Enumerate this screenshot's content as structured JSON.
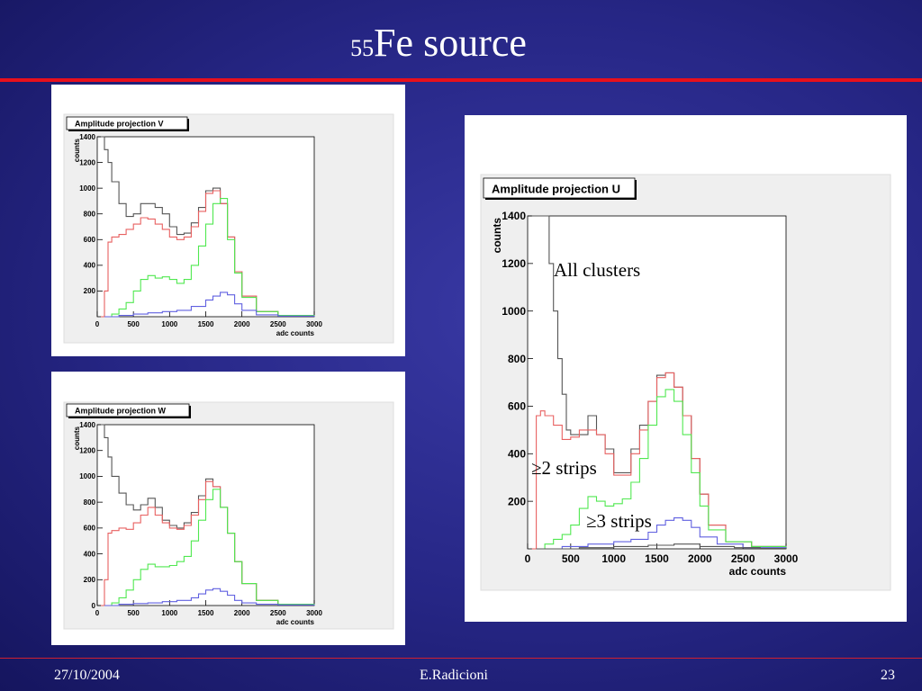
{
  "slide": {
    "title_sup": "55",
    "title_text": "Fe source",
    "date": "27/10/2004",
    "author": "E.Radicioni",
    "page": "23"
  },
  "colors": {
    "accent_rule": "#e8101c",
    "all_clusters": "#555555",
    "two_strips": "#e86060",
    "three_strips": "#50e850",
    "extra": "#6060e0"
  },
  "annotations": {
    "all": "All clusters",
    "two": "≥2 strips",
    "three": "≥3 strips"
  },
  "chart_data": [
    {
      "id": "v",
      "type": "line",
      "title": "Amplitude projection V",
      "xlabel": "adc counts",
      "ylabel": "counts",
      "xlim": [
        0,
        3000
      ],
      "ylim": [
        0,
        1400
      ],
      "xticks": [
        0,
        500,
        1000,
        1500,
        2000,
        2500,
        3000
      ],
      "yticks": [
        200,
        400,
        600,
        800,
        1000,
        1200,
        1400
      ],
      "ytick_labels": [
        "200",
        "400",
        "600",
        "800",
        "1000",
        "1200",
        "1400"
      ],
      "series": [
        {
          "color": "#555555",
          "x": [
            50,
            100,
            150,
            200,
            300,
            400,
            500,
            600,
            700,
            800,
            900,
            1000,
            1100,
            1200,
            1300,
            1400,
            1500,
            1600,
            1700,
            1800,
            1900,
            2000,
            2200,
            2500,
            3000
          ],
          "y": [
            1400,
            1300,
            1200,
            1050,
            880,
            780,
            800,
            880,
            880,
            850,
            800,
            700,
            640,
            650,
            730,
            850,
            980,
            1000,
            880,
            620,
            350,
            160,
            40,
            10,
            0
          ]
        },
        {
          "color": "#e86060",
          "x": [
            50,
            100,
            150,
            200,
            300,
            400,
            500,
            600,
            700,
            800,
            900,
            1000,
            1100,
            1200,
            1300,
            1400,
            1500,
            1600,
            1700,
            1800,
            1900,
            2000,
            2200,
            2500,
            3000
          ],
          "y": [
            0,
            200,
            580,
            620,
            640,
            680,
            720,
            770,
            760,
            720,
            680,
            620,
            600,
            620,
            700,
            820,
            960,
            980,
            880,
            620,
            350,
            160,
            40,
            10,
            0
          ]
        },
        {
          "color": "#50e850",
          "x": [
            100,
            200,
            300,
            400,
            500,
            600,
            700,
            800,
            900,
            1000,
            1100,
            1200,
            1300,
            1400,
            1500,
            1600,
            1700,
            1800,
            1900,
            2000,
            2200,
            2500,
            3000
          ],
          "y": [
            0,
            20,
            60,
            110,
            200,
            290,
            320,
            300,
            310,
            290,
            260,
            290,
            400,
            550,
            720,
            880,
            920,
            600,
            340,
            150,
            40,
            10,
            0
          ]
        },
        {
          "color": "#6060e0",
          "x": [
            100,
            300,
            500,
            700,
            900,
            1100,
            1300,
            1500,
            1600,
            1700,
            1800,
            1900,
            2000,
            2200,
            2500,
            3000
          ],
          "y": [
            0,
            10,
            20,
            30,
            40,
            50,
            80,
            130,
            160,
            190,
            170,
            100,
            50,
            15,
            5,
            0
          ]
        }
      ]
    },
    {
      "id": "w",
      "type": "line",
      "title": "Amplitude projection W",
      "xlabel": "adc counts",
      "ylabel": "counts",
      "xlim": [
        0,
        3000
      ],
      "ylim": [
        0,
        1400
      ],
      "xticks": [
        0,
        500,
        1000,
        1500,
        2000,
        2500,
        3000
      ],
      "yticks": [
        0,
        200,
        400,
        600,
        800,
        1000,
        1200,
        1400
      ],
      "ytick_labels": [
        "0",
        "200",
        "400",
        "600",
        "800",
        "1000",
        "1200",
        "1400"
      ],
      "series": [
        {
          "color": "#555555",
          "x": [
            50,
            100,
            150,
            200,
            300,
            400,
            500,
            600,
            700,
            800,
            900,
            1000,
            1100,
            1200,
            1300,
            1400,
            1500,
            1600,
            1700,
            1800,
            1900,
            2000,
            2200,
            2500,
            3000
          ],
          "y": [
            1400,
            1300,
            1150,
            1000,
            870,
            780,
            740,
            780,
            830,
            760,
            660,
            620,
            600,
            640,
            720,
            850,
            980,
            920,
            760,
            560,
            340,
            170,
            40,
            10,
            0
          ]
        },
        {
          "color": "#e86060",
          "x": [
            50,
            100,
            150,
            200,
            300,
            400,
            500,
            600,
            700,
            800,
            900,
            1000,
            1100,
            1200,
            1300,
            1400,
            1500,
            1600,
            1700,
            1800,
            1900,
            2000,
            2200,
            2500,
            3000
          ],
          "y": [
            0,
            200,
            560,
            580,
            600,
            590,
            640,
            700,
            760,
            700,
            640,
            600,
            590,
            620,
            700,
            820,
            960,
            920,
            760,
            560,
            340,
            170,
            40,
            10,
            0
          ]
        },
        {
          "color": "#50e850",
          "x": [
            100,
            200,
            300,
            400,
            500,
            600,
            700,
            800,
            900,
            1000,
            1100,
            1200,
            1300,
            1400,
            1500,
            1600,
            1700,
            1800,
            1900,
            2000,
            2200,
            2500,
            3000
          ],
          "y": [
            0,
            20,
            60,
            120,
            200,
            280,
            320,
            300,
            300,
            310,
            340,
            380,
            500,
            660,
            820,
            900,
            760,
            560,
            340,
            170,
            40,
            10,
            0
          ]
        },
        {
          "color": "#6060e0",
          "x": [
            100,
            300,
            500,
            700,
            900,
            1100,
            1300,
            1400,
            1500,
            1600,
            1700,
            1800,
            1900,
            2000,
            2200,
            2500,
            3000
          ],
          "y": [
            0,
            10,
            15,
            20,
            30,
            40,
            60,
            90,
            120,
            130,
            110,
            80,
            40,
            20,
            10,
            5,
            0
          ]
        }
      ]
    },
    {
      "id": "u",
      "type": "line",
      "title": "Amplitude projection U",
      "xlabel": "adc counts",
      "ylabel": "counts",
      "xlim": [
        0,
        3000
      ],
      "ylim": [
        0,
        1400
      ],
      "xticks": [
        0,
        500,
        1000,
        1500,
        2000,
        2500,
        3000
      ],
      "yticks": [
        200,
        400,
        600,
        800,
        1000,
        1200,
        1400
      ],
      "ytick_labels": [
        "200",
        "400",
        "600",
        "800",
        "1000",
        "1200",
        "1400"
      ],
      "series": [
        {
          "color": "#555555",
          "x": [
            50,
            100,
            150,
            200,
            250,
            300,
            350,
            400,
            450,
            500,
            600,
            700,
            800,
            900,
            1000,
            1100,
            1200,
            1300,
            1400,
            1500,
            1600,
            1700,
            1800,
            1900,
            2000,
            2100,
            2300,
            2600,
            3000
          ],
          "y": [
            1400,
            1400,
            1400,
            1400,
            1200,
            1000,
            800,
            650,
            500,
            480,
            480,
            560,
            480,
            420,
            320,
            320,
            420,
            520,
            620,
            730,
            740,
            680,
            560,
            380,
            230,
            100,
            30,
            10,
            0
          ]
        },
        {
          "color": "#e86060",
          "x": [
            50,
            100,
            150,
            200,
            300,
            400,
            500,
            600,
            700,
            800,
            900,
            1000,
            1100,
            1200,
            1300,
            1400,
            1500,
            1600,
            1700,
            1800,
            1900,
            2000,
            2100,
            2300,
            2600,
            3000
          ],
          "y": [
            0,
            560,
            580,
            560,
            520,
            460,
            470,
            500,
            500,
            480,
            400,
            310,
            310,
            400,
            500,
            620,
            720,
            740,
            680,
            560,
            380,
            230,
            100,
            30,
            10,
            0
          ]
        },
        {
          "color": "#50e850",
          "x": [
            100,
            200,
            300,
            400,
            500,
            600,
            700,
            800,
            900,
            1000,
            1100,
            1200,
            1300,
            1400,
            1500,
            1600,
            1700,
            1800,
            1900,
            2000,
            2100,
            2300,
            2600,
            3000
          ],
          "y": [
            0,
            20,
            40,
            60,
            100,
            170,
            220,
            200,
            180,
            190,
            210,
            280,
            380,
            520,
            640,
            670,
            620,
            480,
            320,
            180,
            80,
            30,
            10,
            0
          ]
        },
        {
          "color": "#6060e0",
          "x": [
            100,
            400,
            700,
            1000,
            1200,
            1400,
            1500,
            1600,
            1700,
            1800,
            1900,
            2000,
            2200,
            2500,
            3000
          ],
          "y": [
            0,
            10,
            20,
            30,
            40,
            70,
            100,
            120,
            130,
            120,
            90,
            50,
            20,
            5,
            0
          ]
        },
        {
          "color": "#555555",
          "x": [
            100,
            600,
            1000,
            1400,
            1700,
            2000,
            2400,
            2700,
            3000
          ],
          "y": [
            0,
            5,
            10,
            15,
            20,
            10,
            5,
            2,
            0
          ]
        }
      ]
    }
  ]
}
